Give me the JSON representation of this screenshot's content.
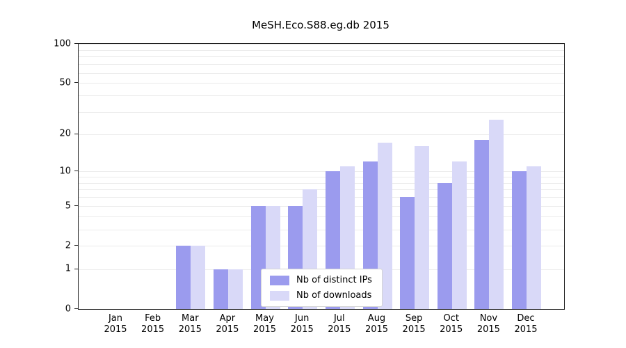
{
  "title": "MeSH.Eco.S88.eg.db 2015",
  "colors": {
    "bar_dark": "#9b9bee",
    "bar_light": "#d9d9f8",
    "gridline": "#ebebeb",
    "frame": "#222222",
    "background": "#ffffff"
  },
  "chart_data": {
    "type": "bar",
    "title": "MeSH.Eco.S88.eg.db 2015",
    "categories": [
      "Jan",
      "Feb",
      "Mar",
      "Apr",
      "May",
      "Jun",
      "Jul",
      "Aug",
      "Sep",
      "Oct",
      "Nov",
      "Dec"
    ],
    "year_label": "2015",
    "series": [
      {
        "name": "Nb of distinct IPs",
        "color": "#9b9bee",
        "values": [
          0,
          0,
          2,
          1,
          5,
          5,
          10,
          12,
          6,
          8,
          18,
          10
        ]
      },
      {
        "name": "Nb of downloads",
        "color": "#d9d9f8",
        "values": [
          0,
          0,
          2,
          1,
          5,
          7,
          11,
          17,
          16,
          12,
          26,
          11
        ]
      }
    ],
    "xlabel": "",
    "ylabel": "",
    "yscale": "log1p",
    "ylim": [
      0,
      100
    ],
    "ytick_values": [
      0,
      1,
      2,
      5,
      10,
      20,
      50,
      100
    ],
    "gridline_values": [
      1,
      2,
      3,
      4,
      5,
      6,
      7,
      8,
      9,
      10,
      20,
      30,
      40,
      50,
      60,
      70,
      80,
      90,
      100
    ],
    "grid": true,
    "legend_position": "inside-bottom-center"
  }
}
